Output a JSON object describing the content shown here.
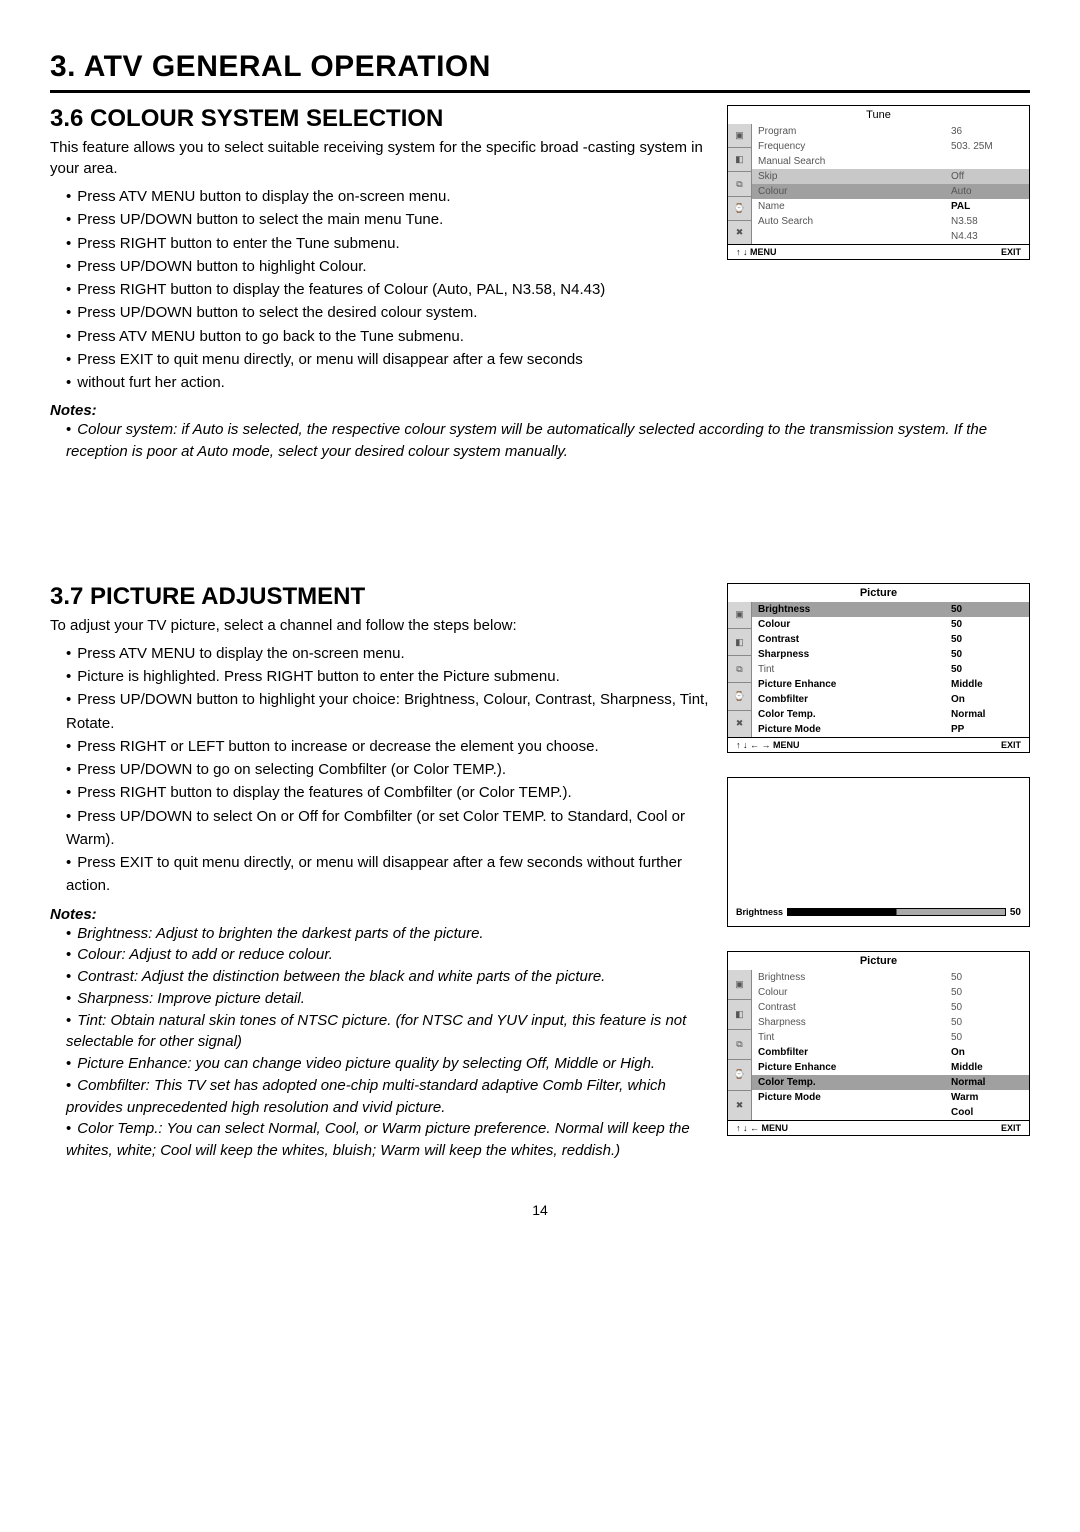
{
  "page_number": "14",
  "chapter": "3.  ATV GENERAL OPERATION",
  "section36": {
    "title": "3.6 COLOUR  SYSTEM SELECTION",
    "intro": "This feature allows you to select suitable receiving system for the specific broad -casting system in your area.",
    "steps": [
      "Press ATV MENU button to display the on-screen menu.",
      "Press UP/DOWN button to select the main menu Tune.",
      "Press RIGHT button to enter the Tune submenu.",
      "Press UP/DOWN button to highlight Colour.",
      "Press RIGHT button to display the features of Colour (Auto, PAL, N3.58, N4.43)",
      "Press UP/DOWN button to select the desired colour system.",
      "Press ATV MENU button to go back to the Tune submenu.",
      "Press EXIT to quit menu directly, or menu will disappear after a few seconds",
      "without furt her action."
    ],
    "notes_label": "Notes:",
    "notes": [
      "Colour system: if Auto is selected, the respective colour system will be automatically selected according to the transmission system. If the reception is poor at Auto mode, select your desired colour system manually."
    ]
  },
  "section37": {
    "title": "3.7 PICTURE ADJUSTMENT",
    "intro": "To adjust your TV picture, select a channel and follow the steps below:",
    "steps": [
      "Press ATV MENU to display the on-screen menu.",
      "Picture is highlighted. Press RIGHT button to enter the Picture submenu.",
      "Press UP/DOWN button to highlight your choice: Brightness, Colour, Contrast, Sharpness, Tint, Rotate.",
      "Press RIGHT or LEFT button to increase or decrease the element you choose.",
      "Press UP/DOWN to go on selecting Combfilter (or Color TEMP.).",
      "Press RIGHT button to display the features of Combfilter (or Color TEMP.).",
      "Press UP/DOWN to select On or Off for Combfilter (or set Color TEMP. to Standard, Cool or Warm).",
      "Press EXIT to quit menu directly, or menu will disappear after a few seconds without further action."
    ],
    "notes_label": "Notes:",
    "notes": [
      "Brightness: Adjust to brighten the darkest parts of the picture.",
      "Colour: Adjust to add or reduce colour.",
      "Contrast: Adjust the distinction between the black and white parts of the picture.",
      "Sharpness: Improve picture detail.",
      "Tint: Obtain natural skin tones of NTSC picture. (for NTSC and YUV input, this feature is not selectable for other signal)",
      "Picture Enhance: you can change video picture quality by selecting Off, Middle or High.",
      "Combfilter: This TV set has adopted one-chip multi-standard adaptive Comb Filter, which provides unprecedented high resolution and vivid picture.",
      "Color Temp.: You can select Normal, Cool, or Warm picture preference. Normal will keep the whites, white; Cool will keep the whites, bluish; Warm will keep the whites, reddish.)"
    ]
  },
  "osd_tune": {
    "title": "Tune",
    "rows": [
      {
        "label": "Program",
        "val": "36",
        "cls": ""
      },
      {
        "label": "Frequency",
        "val": "503. 25M",
        "cls": ""
      },
      {
        "label": "Manual Search",
        "val": "",
        "cls": ""
      },
      {
        "label": "Skip",
        "val": "Off",
        "cls": "sub"
      },
      {
        "label": "Colour",
        "val": "Auto",
        "cls": "hl"
      },
      {
        "label": "Name",
        "val": "PAL",
        "cls": "",
        "valBold": true
      },
      {
        "label": "Auto Search",
        "val": "N3.58",
        "cls": ""
      },
      {
        "label": "",
        "val": "N4.43",
        "cls": ""
      }
    ],
    "footer_left": "↑ ↓        MENU",
    "footer_right": "EXIT"
  },
  "osd_pic1": {
    "title": "Picture",
    "rows": [
      {
        "label": "Brightness",
        "val": "50",
        "cls": "hl",
        "lblBold": true,
        "valBold": true
      },
      {
        "label": "Colour",
        "val": "50",
        "cls": "",
        "lblBold": true,
        "valBold": true
      },
      {
        "label": "Contrast",
        "val": "50",
        "cls": "",
        "lblBold": true,
        "valBold": true
      },
      {
        "label": "Sharpness",
        "val": "50",
        "cls": "",
        "lblBold": true,
        "valBold": true
      },
      {
        "label": "Tint",
        "val": "50",
        "cls": "",
        "valBold": true
      },
      {
        "label": "Picture Enhance",
        "val": "Middle",
        "cls": "",
        "lblBold": true,
        "valBold": true
      },
      {
        "label": "Combfilter",
        "val": "On",
        "cls": "",
        "lblBold": true,
        "valBold": true
      },
      {
        "label": "Color Temp.",
        "val": "Normal",
        "cls": "",
        "lblBold": true,
        "valBold": true
      },
      {
        "label": "Picture Mode",
        "val": "PP",
        "cls": "",
        "lblBold": true,
        "valBold": true
      }
    ],
    "footer_left": "↑ ↓ ← → MENU",
    "footer_right": "EXIT"
  },
  "brightness_bar": {
    "label": "Brightness",
    "value": "50",
    "fill_percent": 50,
    "fill_color": "#000000",
    "empty_color": "#aaaaaa"
  },
  "osd_pic2": {
    "title": "Picture",
    "rows": [
      {
        "label": "Brightness",
        "val": "50",
        "cls": ""
      },
      {
        "label": "Colour",
        "val": "50",
        "cls": ""
      },
      {
        "label": "Contrast",
        "val": "50",
        "cls": ""
      },
      {
        "label": "Sharpness",
        "val": "50",
        "cls": ""
      },
      {
        "label": "Tint",
        "val": "50",
        "cls": ""
      },
      {
        "label": "Combfilter",
        "val": "On",
        "cls": "",
        "lblBold": true,
        "valBold": true
      },
      {
        "label": "Picture Enhance",
        "val": "Middle",
        "cls": "",
        "lblBold": true,
        "valBold": true
      },
      {
        "label": "Color Temp.",
        "val": "Normal",
        "cls": "hl",
        "lblBold": true,
        "valBold": true
      },
      {
        "label": "Picture Mode",
        "val": "Warm",
        "cls": "",
        "lblBold": true,
        "valBold": true
      },
      {
        "label": "",
        "val": "Cool",
        "cls": "",
        "valBold": true
      }
    ],
    "footer_left": "↑ ↓ ←  MENU",
    "footer_right": "EXIT"
  }
}
